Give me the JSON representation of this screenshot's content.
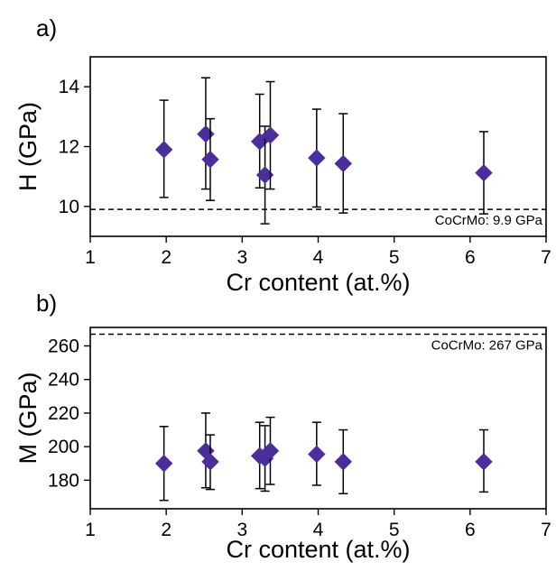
{
  "chart_data": [
    {
      "type": "scatter",
      "panel_label": "a)",
      "xlabel": "Cr content (at.%)",
      "ylabel": "H (GPa)",
      "xlim": [
        1,
        7
      ],
      "ylim": [
        9,
        15
      ],
      "xticks": [
        "1",
        "2",
        "3",
        "4",
        "5",
        "6",
        "7"
      ],
      "yticks": [
        "10",
        "12",
        "14"
      ],
      "xtick_values": [
        1,
        2,
        3,
        4,
        5,
        6,
        7
      ],
      "ytick_values": [
        10,
        12,
        14
      ],
      "marker": "diamond",
      "marker_color": "#4b2d9c",
      "points": [
        {
          "x": 1.97,
          "y": 11.9,
          "ylow": 10.3,
          "yhigh": 13.55
        },
        {
          "x": 2.52,
          "y": 12.42,
          "ylow": 10.58,
          "yhigh": 14.3
        },
        {
          "x": 2.58,
          "y": 11.57,
          "ylow": 10.2,
          "yhigh": 12.93
        },
        {
          "x": 3.23,
          "y": 12.17,
          "ylow": 10.62,
          "yhigh": 13.75
        },
        {
          "x": 3.3,
          "y": 11.05,
          "ylow": 9.42,
          "yhigh": 12.68
        },
        {
          "x": 3.37,
          "y": 12.38,
          "ylow": 10.58,
          "yhigh": 14.17
        },
        {
          "x": 3.98,
          "y": 11.62,
          "ylow": 9.98,
          "yhigh": 13.25
        },
        {
          "x": 4.33,
          "y": 11.43,
          "ylow": 9.78,
          "yhigh": 13.1
        },
        {
          "x": 6.18,
          "y": 11.12,
          "ylow": 9.75,
          "yhigh": 12.5
        }
      ],
      "reference_line": {
        "y": 9.9,
        "label": "CoCrMo: 9.9 GPa",
        "style": "dashed"
      }
    },
    {
      "type": "scatter",
      "panel_label": "b)",
      "xlabel": "Cr content (at.%)",
      "ylabel": "M (GPa)",
      "xlim": [
        1,
        7
      ],
      "ylim": [
        163,
        271
      ],
      "xticks": [
        "1",
        "2",
        "3",
        "4",
        "5",
        "6",
        "7"
      ],
      "yticks": [
        "180",
        "200",
        "220",
        "240",
        "260"
      ],
      "xtick_values": [
        1,
        2,
        3,
        4,
        5,
        6,
        7
      ],
      "ytick_values": [
        180,
        200,
        220,
        240,
        260
      ],
      "marker": "diamond",
      "marker_color": "#4b2d9c",
      "points": [
        {
          "x": 1.97,
          "y": 190,
          "ylow": 168,
          "yhigh": 212
        },
        {
          "x": 2.52,
          "y": 197.5,
          "ylow": 175.5,
          "yhigh": 220
        },
        {
          "x": 2.58,
          "y": 191,
          "ylow": 174.5,
          "yhigh": 207
        },
        {
          "x": 3.23,
          "y": 194.5,
          "ylow": 175,
          "yhigh": 214.5
        },
        {
          "x": 3.3,
          "y": 193,
          "ylow": 173.5,
          "yhigh": 212.5
        },
        {
          "x": 3.37,
          "y": 197.5,
          "ylow": 177.5,
          "yhigh": 217.5
        },
        {
          "x": 3.98,
          "y": 195.5,
          "ylow": 177,
          "yhigh": 214.5
        },
        {
          "x": 4.33,
          "y": 191,
          "ylow": 172,
          "yhigh": 210
        },
        {
          "x": 6.18,
          "y": 191,
          "ylow": 173,
          "yhigh": 210
        }
      ],
      "reference_line": {
        "y": 267,
        "label": "CoCrMo: 267 GPa",
        "style": "dashed"
      }
    }
  ]
}
